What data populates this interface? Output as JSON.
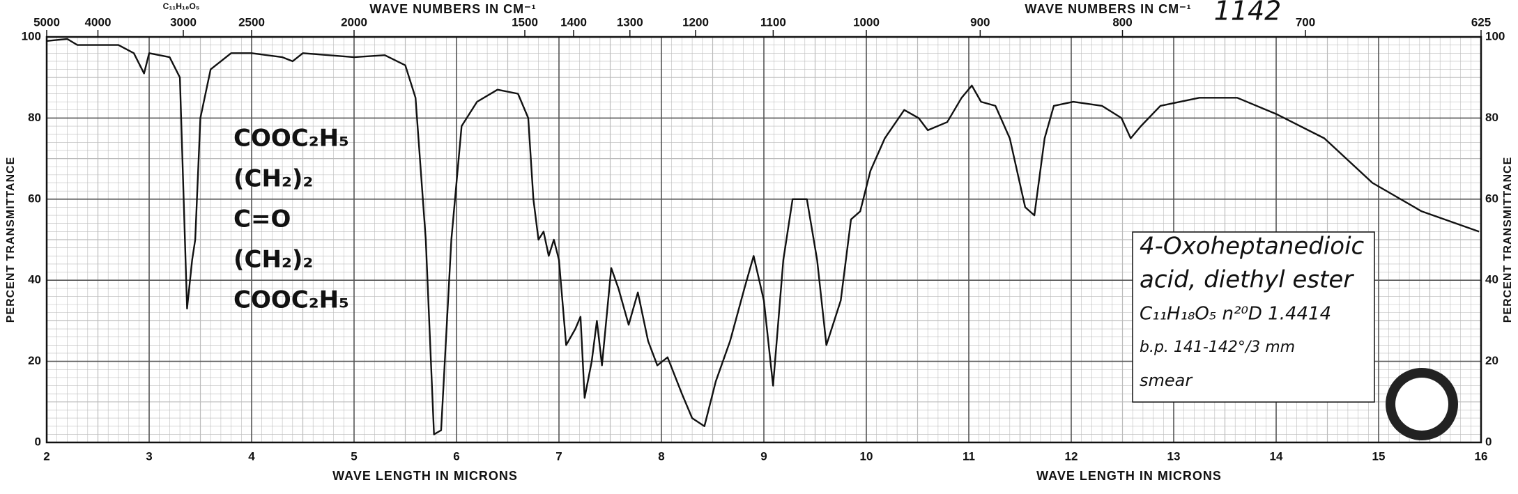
{
  "chart_data": {
    "type": "line",
    "catalog_number": "1142",
    "formula_header": "C₁₁H₁₈O₅",
    "xlabel": "WAVE LENGTH IN MICRONS",
    "x2label": "WAVE NUMBERS IN CM⁻¹",
    "ylabel": "PERCENT TRANSMITTANCE",
    "xlim": [
      2,
      16
    ],
    "xticks": [
      2,
      3,
      4,
      5,
      6,
      7,
      8,
      9,
      10,
      11,
      12,
      13,
      14,
      15,
      16
    ],
    "x2ticks": [
      5000,
      4000,
      3000,
      2500,
      2000,
      1500,
      1400,
      1300,
      1200,
      1100,
      1000,
      900,
      800,
      700,
      625
    ],
    "ylim": [
      0,
      100
    ],
    "yticks": [
      0,
      20,
      40,
      60,
      80,
      100
    ],
    "grid": true,
    "minor_grid": true,
    "color": "#111111",
    "x": [
      2.0,
      2.2,
      2.3,
      2.5,
      2.7,
      2.85,
      2.95,
      3.0,
      3.2,
      3.3,
      3.37,
      3.42,
      3.45,
      3.5,
      3.6,
      3.8,
      4.0,
      4.3,
      4.4,
      4.5,
      5.0,
      5.3,
      5.5,
      5.6,
      5.7,
      5.78,
      5.85,
      5.95,
      6.05,
      6.2,
      6.4,
      6.6,
      6.7,
      6.75,
      6.8,
      6.85,
      6.9,
      6.95,
      7.0,
      7.07,
      7.16,
      7.21,
      7.25,
      7.32,
      7.37,
      7.42,
      7.51,
      7.58,
      7.68,
      7.77,
      7.87,
      7.96,
      8.06,
      8.2,
      8.3,
      8.42,
      8.53,
      8.67,
      8.81,
      8.9,
      9.0,
      9.09,
      9.19,
      9.28,
      9.42,
      9.52,
      9.61,
      9.75,
      9.85,
      9.94,
      10.04,
      10.18,
      10.37,
      10.51,
      10.6,
      10.79,
      10.93,
      11.03,
      11.12,
      11.26,
      11.4,
      11.55,
      11.64,
      11.74,
      11.83,
      12.02,
      12.3,
      12.49,
      12.58,
      12.68,
      12.87,
      13.25,
      13.62,
      14.0,
      14.47,
      14.94,
      15.42,
      15.98
    ],
    "values": [
      99,
      99.5,
      98,
      98,
      98,
      96,
      91,
      96,
      95,
      90,
      33,
      45,
      50,
      80,
      92,
      96,
      96,
      95,
      94,
      96,
      95,
      95.5,
      93,
      85,
      50,
      2,
      3,
      50,
      78,
      84,
      87,
      86,
      80,
      60,
      50,
      52,
      46,
      50,
      45,
      24,
      28,
      31,
      11,
      20,
      30,
      19,
      43,
      38,
      29,
      37,
      25,
      19,
      21,
      12,
      6,
      4,
      15,
      25,
      38,
      46,
      35,
      14,
      45,
      60,
      60,
      45,
      24,
      35,
      55,
      57,
      67,
      75,
      82,
      80,
      77,
      79,
      85,
      88,
      84,
      83,
      75,
      58,
      56,
      75,
      83,
      84,
      83,
      80,
      75,
      78,
      83,
      85,
      85,
      81,
      75,
      64,
      57,
      52
    ],
    "structure": [
      "COOC₂H₅",
      "(CH₂)₂",
      "C=O",
      "(CH₂)₂",
      "COOC₂H₅"
    ],
    "label_box": [
      "4-Oxoheptanedioic",
      "acid, diethyl ester",
      "C₁₁H₁₈O₅   n²⁰D 1.4414",
      "b.p. 141-142°/3 mm",
      "smear"
    ]
  }
}
